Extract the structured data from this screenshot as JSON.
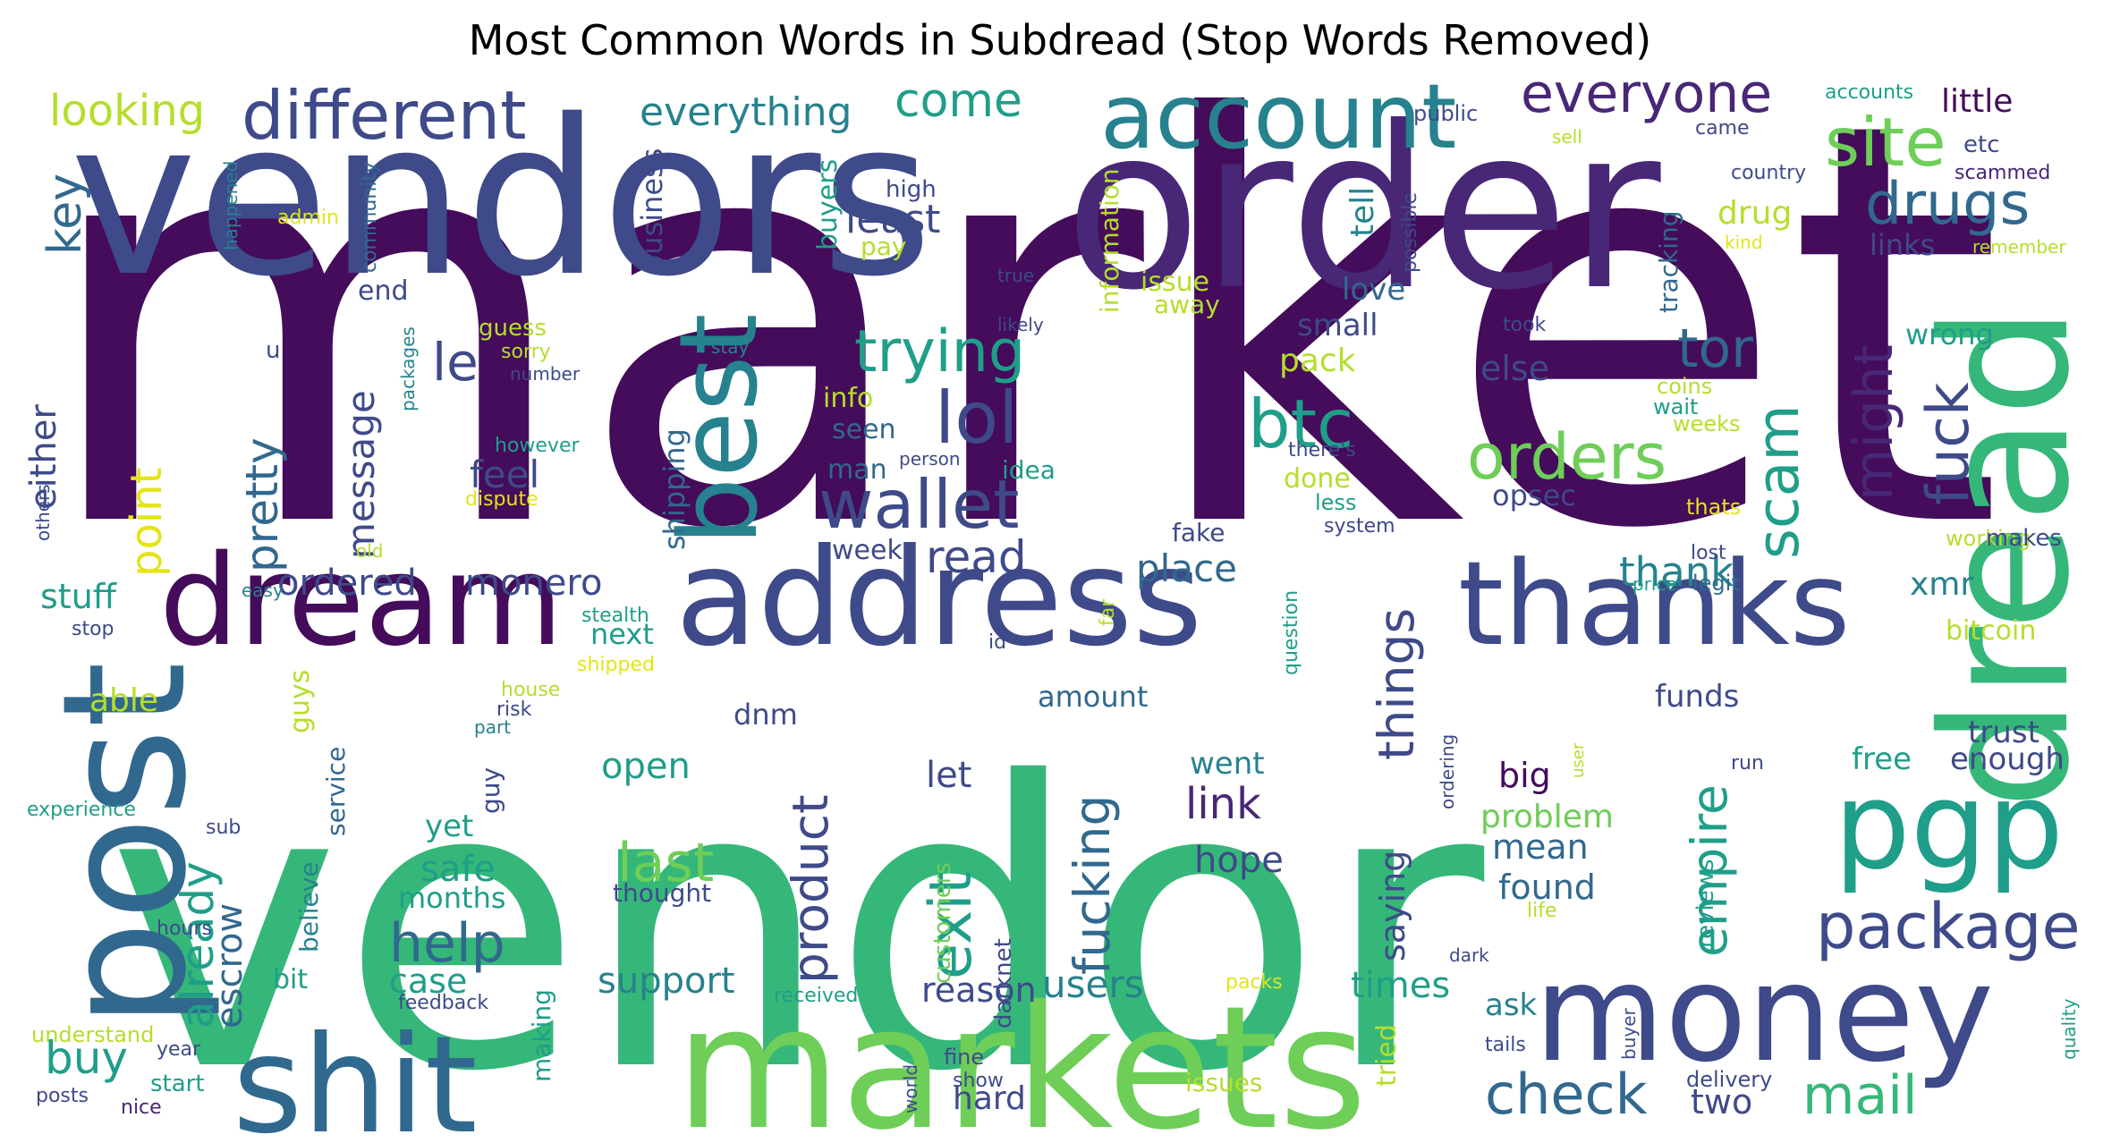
{
  "title": "Most Common Words in Subdread (Stop Words Removed)",
  "palette": {
    "deep_purple": "#440c5a",
    "purple": "#482777",
    "indigo": "#3e4a89",
    "blue": "#31688e",
    "teal": "#26828e",
    "sea": "#1f9e89",
    "green": "#35b779",
    "light_green": "#6ece58",
    "lime": "#b5de2b",
    "yellow": "#e3e418"
  },
  "words": [
    {
      "text": "market",
      "color": "#440c5a"
    },
    {
      "text": "vendor",
      "color": "#35b779"
    },
    {
      "text": "vendors",
      "color": "#3e4a89"
    },
    {
      "text": "order",
      "color": "#482777"
    },
    {
      "text": "dread",
      "color": "#35b779"
    },
    {
      "text": "post",
      "color": "#31688e"
    },
    {
      "text": "markets",
      "color": "#6ece58"
    },
    {
      "text": "shit",
      "color": "#31688e"
    },
    {
      "text": "money",
      "color": "#3e4a89"
    },
    {
      "text": "address",
      "color": "#3e4a89"
    },
    {
      "text": "thanks",
      "color": "#3e4a89"
    },
    {
      "text": "dream",
      "color": "#440c5a"
    },
    {
      "text": "pgp",
      "color": "#1f9e89"
    },
    {
      "text": "best",
      "color": "#26828e"
    },
    {
      "text": "account",
      "color": "#26828e"
    },
    {
      "text": "different",
      "color": "#3e4a89"
    },
    {
      "text": "everyone",
      "color": "#482777"
    },
    {
      "text": "site",
      "color": "#6ece58"
    },
    {
      "text": "drugs",
      "color": "#31688e"
    },
    {
      "text": "package",
      "color": "#3e4a89"
    },
    {
      "text": "check",
      "color": "#31688e"
    },
    {
      "text": "mail",
      "color": "#35b779"
    },
    {
      "text": "wallet",
      "color": "#3e4a89"
    },
    {
      "text": "lol",
      "color": "#3e4a89"
    },
    {
      "text": "trying",
      "color": "#1f9e89"
    },
    {
      "text": "btc",
      "color": "#1f9e89"
    },
    {
      "text": "orders",
      "color": "#6ece58"
    },
    {
      "text": "scam",
      "color": "#1f9e89"
    },
    {
      "text": "fuck",
      "color": "#3e4a89"
    },
    {
      "text": "might",
      "color": "#482777"
    },
    {
      "text": "tor",
      "color": "#31688e"
    },
    {
      "text": "help",
      "color": "#31688e"
    },
    {
      "text": "exit",
      "color": "#1f9e89"
    },
    {
      "text": "fucking",
      "color": "#31688e"
    },
    {
      "text": "product",
      "color": "#3e4a89"
    },
    {
      "text": "last",
      "color": "#6ece58"
    },
    {
      "text": "things",
      "color": "#3e4a89"
    },
    {
      "text": "empire",
      "color": "#1f9e89"
    },
    {
      "text": "already",
      "color": "#1f9e89"
    },
    {
      "text": "pretty",
      "color": "#31688e"
    },
    {
      "text": "point",
      "color": "#e3e418"
    },
    {
      "text": "buy",
      "color": "#1f9e89"
    },
    {
      "text": "escrow",
      "color": "#31688e"
    },
    {
      "text": "looking",
      "color": "#b5de2b"
    },
    {
      "text": "everything",
      "color": "#26828e"
    },
    {
      "text": "come",
      "color": "#1f9e89"
    },
    {
      "text": "key",
      "color": "#31688e"
    },
    {
      "text": "le",
      "color": "#3e4a89"
    },
    {
      "text": "message",
      "color": "#3e4a89"
    },
    {
      "text": "either",
      "color": "#3e4a89"
    },
    {
      "text": "read",
      "color": "#3e4a89"
    },
    {
      "text": "least",
      "color": "#3e4a89"
    },
    {
      "text": "feel",
      "color": "#3e4a89"
    },
    {
      "text": "place",
      "color": "#31688e"
    },
    {
      "text": "thank",
      "color": "#26828e"
    },
    {
      "text": "ordered",
      "color": "#3e4a89"
    },
    {
      "text": "monero",
      "color": "#3e4a89"
    },
    {
      "text": "stuff",
      "color": "#1f9e89"
    },
    {
      "text": "users",
      "color": "#26828e"
    },
    {
      "text": "reason",
      "color": "#3e4a89"
    },
    {
      "text": "support",
      "color": "#26828e"
    },
    {
      "text": "link",
      "color": "#482777"
    },
    {
      "text": "hope",
      "color": "#3e4a89"
    },
    {
      "text": "open",
      "color": "#1f9e89"
    },
    {
      "text": "let",
      "color": "#3e4a89"
    },
    {
      "text": "safe",
      "color": "#1f9e89"
    },
    {
      "text": "case",
      "color": "#1f9e89"
    },
    {
      "text": "times",
      "color": "#1f9e89"
    },
    {
      "text": "big",
      "color": "#440c5a"
    },
    {
      "text": "problem",
      "color": "#6ece58"
    },
    {
      "text": "mean",
      "color": "#31688e"
    },
    {
      "text": "found",
      "color": "#31688e"
    },
    {
      "text": "saying",
      "color": "#3e4a89"
    },
    {
      "text": "two",
      "color": "#3e4a89"
    },
    {
      "text": "hard",
      "color": "#3e4a89"
    },
    {
      "text": "ask",
      "color": "#26828e"
    },
    {
      "text": "else",
      "color": "#3e4a89"
    },
    {
      "text": "small",
      "color": "#3e4a89"
    },
    {
      "text": "love",
      "color": "#31688e"
    },
    {
      "text": "tell",
      "color": "#26828e"
    },
    {
      "text": "pack",
      "color": "#b5de2b"
    },
    {
      "text": "issue",
      "color": "#b5de2b"
    },
    {
      "text": "away",
      "color": "#b5de2b"
    },
    {
      "text": "done",
      "color": "#b5de2b"
    },
    {
      "text": "opsec",
      "color": "#3e4a89"
    },
    {
      "text": "xmr",
      "color": "#26828e"
    },
    {
      "text": "bitcoin",
      "color": "#b5de2b"
    },
    {
      "text": "wrong",
      "color": "#1f9e89"
    },
    {
      "text": "links",
      "color": "#3e4a89"
    },
    {
      "text": "little",
      "color": "#440c5a"
    },
    {
      "text": "drug",
      "color": "#b5de2b"
    },
    {
      "text": "trust",
      "color": "#3e4a89"
    },
    {
      "text": "enough",
      "color": "#3e4a89"
    },
    {
      "text": "free",
      "color": "#1f9e89"
    },
    {
      "text": "funds",
      "color": "#3e4a89"
    },
    {
      "text": "able",
      "color": "#b5de2b"
    },
    {
      "text": "guys",
      "color": "#b5de2b"
    },
    {
      "text": "next",
      "color": "#1f9e89"
    },
    {
      "text": "months",
      "color": "#1f9e89"
    },
    {
      "text": "yet",
      "color": "#1f9e89"
    },
    {
      "text": "dnm",
      "color": "#3e4a89"
    },
    {
      "text": "went",
      "color": "#26828e"
    },
    {
      "text": "amount",
      "color": "#31688e"
    },
    {
      "text": "business",
      "color": "#3e4a89"
    },
    {
      "text": "shipping",
      "color": "#31688e"
    },
    {
      "text": "buyers",
      "color": "#1f9e89"
    },
    {
      "text": "information",
      "color": "#b5de2b"
    },
    {
      "text": "tracking",
      "color": "#31688e"
    },
    {
      "text": "seen",
      "color": "#31688e"
    },
    {
      "text": "man",
      "color": "#31688e"
    },
    {
      "text": "idea",
      "color": "#1f9e89"
    },
    {
      "text": "info",
      "color": "#b5de2b"
    },
    {
      "text": "pay",
      "color": "#b5de2b"
    },
    {
      "text": "week",
      "color": "#3e4a89"
    },
    {
      "text": "end",
      "color": "#3e4a89"
    },
    {
      "text": "service",
      "color": "#31688e"
    },
    {
      "text": "guy",
      "color": "#3e4a89"
    },
    {
      "text": "believe",
      "color": "#26828e"
    },
    {
      "text": "making",
      "color": "#1f9e89"
    },
    {
      "text": "customers",
      "color": "#6ece58"
    },
    {
      "text": "darknet",
      "color": "#3e4a89"
    },
    {
      "text": "tried",
      "color": "#b5de2b"
    },
    {
      "text": "reviews",
      "color": "#1f9e89"
    },
    {
      "text": "delivery",
      "color": "#3e4a89"
    },
    {
      "text": "issues",
      "color": "#b5de2b"
    },
    {
      "text": "bit",
      "color": "#1f9e89"
    },
    {
      "text": "fake",
      "color": "#3e4a89"
    },
    {
      "text": "working",
      "color": "#b5de2b"
    },
    {
      "text": "makes",
      "color": "#3e4a89"
    },
    {
      "text": "others",
      "color": "#3e4a89"
    },
    {
      "text": "u",
      "color": "#3e4a89"
    },
    {
      "text": "high",
      "color": "#3e4a89"
    },
    {
      "text": "admin",
      "color": "#e3e418"
    },
    {
      "text": "happened",
      "color": "#26828e"
    },
    {
      "text": "community",
      "color": "#31688e"
    },
    {
      "text": "true",
      "color": "#3e4a89"
    },
    {
      "text": "likely",
      "color": "#3e4a89"
    },
    {
      "text": "stay",
      "color": "#26828e"
    },
    {
      "text": "guess",
      "color": "#b5de2b"
    },
    {
      "text": "sorry",
      "color": "#b5de2b"
    },
    {
      "text": "number",
      "color": "#3e4a89"
    },
    {
      "text": "packages",
      "color": "#26828e"
    },
    {
      "text": "however",
      "color": "#1f9e89"
    },
    {
      "text": "dispute",
      "color": "#e3e418"
    },
    {
      "text": "person",
      "color": "#3e4a89"
    },
    {
      "text": "old",
      "color": "#b5de2b"
    },
    {
      "text": "easy",
      "color": "#26828e"
    },
    {
      "text": "stealth",
      "color": "#1f9e89"
    },
    {
      "text": "shipped",
      "color": "#e3e418"
    },
    {
      "text": "stop",
      "color": "#3e4a89"
    },
    {
      "text": "house",
      "color": "#b5de2b"
    },
    {
      "text": "risk",
      "color": "#3e4a89"
    },
    {
      "text": "part",
      "color": "#26828e"
    },
    {
      "text": "experience",
      "color": "#1f9e89"
    },
    {
      "text": "sub",
      "color": "#3e4a89"
    },
    {
      "text": "hours",
      "color": "#3e4a89"
    },
    {
      "text": "feedback",
      "color": "#3e4a89"
    },
    {
      "text": "understand",
      "color": "#b5de2b"
    },
    {
      "text": "year",
      "color": "#3e4a89"
    },
    {
      "text": "posts",
      "color": "#3e4a89"
    },
    {
      "text": "start",
      "color": "#1f9e89"
    },
    {
      "text": "nice",
      "color": "#482777"
    },
    {
      "text": "received",
      "color": "#1f9e89"
    },
    {
      "text": "world",
      "color": "#3e4a89"
    },
    {
      "text": "fine",
      "color": "#3e4a89"
    },
    {
      "text": "show",
      "color": "#3e4a89"
    },
    {
      "text": "packs",
      "color": "#e3e418"
    },
    {
      "text": "thought",
      "color": "#3e4a89"
    },
    {
      "text": "id",
      "color": "#3e4a89"
    },
    {
      "text": "far",
      "color": "#b5de2b"
    },
    {
      "text": "question",
      "color": "#1f9e89"
    },
    {
      "text": "ordering",
      "color": "#3e4a89"
    },
    {
      "text": "dark",
      "color": "#3e4a89"
    },
    {
      "text": "tails",
      "color": "#3e4a89"
    },
    {
      "text": "buyer",
      "color": "#3e4a89"
    },
    {
      "text": "quality",
      "color": "#1f9e89"
    },
    {
      "text": "user",
      "color": "#b5de2b"
    },
    {
      "text": "run",
      "color": "#3e4a89"
    },
    {
      "text": "life",
      "color": "#b5de2b"
    },
    {
      "text": "price",
      "color": "#1f9e89"
    },
    {
      "text": "legit",
      "color": "#31688e"
    },
    {
      "text": "lost",
      "color": "#3e4a89"
    },
    {
      "text": "thats",
      "color": "#e3e418"
    },
    {
      "text": "system",
      "color": "#3e4a89"
    },
    {
      "text": "less",
      "color": "#1f9e89"
    },
    {
      "text": "there's",
      "color": "#3e4a89"
    },
    {
      "text": "weeks",
      "color": "#b5de2b"
    },
    {
      "text": "wait",
      "color": "#1f9e89"
    },
    {
      "text": "coins",
      "color": "#b5de2b"
    },
    {
      "text": "took",
      "color": "#3e4a89"
    },
    {
      "text": "possible",
      "color": "#3e4a89"
    },
    {
      "text": "public",
      "color": "#3e4a89"
    },
    {
      "text": "sell",
      "color": "#b5de2b"
    },
    {
      "text": "accounts",
      "color": "#1f9e89"
    },
    {
      "text": "came",
      "color": "#3e4a89"
    },
    {
      "text": "etc",
      "color": "#3e4a89"
    },
    {
      "text": "country",
      "color": "#3e4a89"
    },
    {
      "text": "scammed",
      "color": "#482777"
    },
    {
      "text": "kind",
      "color": "#e3e418"
    },
    {
      "text": "remember",
      "color": "#b5de2b"
    }
  ]
}
